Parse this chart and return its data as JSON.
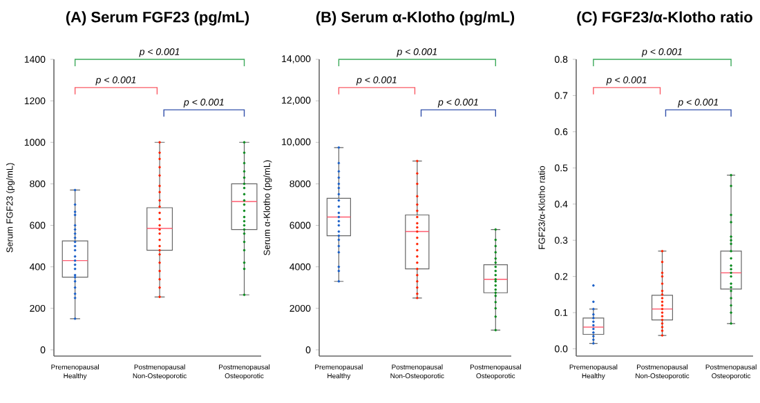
{
  "chart_data": [
    {
      "type": "box",
      "title": "(A) Serum FGF23 (pg/mL)",
      "ylabel": "Serum FGF23 (pg/mL)",
      "categories": [
        "Premenopausal Healthy",
        "Postmenopausal Non-Osteoporotic",
        "Postmenopausal Osteoporotic"
      ],
      "boxes": [
        {
          "low": 150,
          "q1": 350,
          "median": 430,
          "q3": 525,
          "high": 770
        },
        {
          "low": 255,
          "q1": 480,
          "median": 585,
          "q3": 685,
          "high": 1000
        },
        {
          "low": 265,
          "q1": 580,
          "median": 715,
          "q3": 800,
          "high": 1000
        }
      ],
      "series": [
        {
          "type": "scatter",
          "color": "#1a5fc8",
          "x": [
            "Premenopausal Healthy",
            "Premenopausal Healthy",
            "Premenopausal Healthy",
            "Premenopausal Healthy",
            "Premenopausal Healthy",
            "Premenopausal Healthy",
            "Premenopausal Healthy",
            "Premenopausal Healthy",
            "Premenopausal Healthy",
            "Premenopausal Healthy",
            "Premenopausal Healthy",
            "Premenopausal Healthy",
            "Premenopausal Healthy",
            "Premenopausal Healthy",
            "Premenopausal Healthy",
            "Premenopausal Healthy",
            "Premenopausal Healthy",
            "Premenopausal Healthy",
            "Premenopausal Healthy",
            "Premenopausal Healthy",
            "Premenopausal Healthy",
            "Premenopausal Healthy"
          ],
          "values": [
            150,
            250,
            270,
            300,
            330,
            350,
            360,
            390,
            410,
            430,
            450,
            480,
            500,
            520,
            540,
            560,
            580,
            600,
            650,
            665,
            700,
            770
          ]
        },
        {
          "type": "scatter",
          "color": "#ff2200",
          "x": [
            "Postmenopausal Non-Osteoporotic",
            "Postmenopausal Non-Osteoporotic",
            "Postmenopausal Non-Osteoporotic",
            "Postmenopausal Non-Osteoporotic",
            "Postmenopausal Non-Osteoporotic",
            "Postmenopausal Non-Osteoporotic",
            "Postmenopausal Non-Osteoporotic",
            "Postmenopausal Non-Osteoporotic",
            "Postmenopausal Non-Osteoporotic",
            "Postmenopausal Non-Osteoporotic",
            "Postmenopausal Non-Osteoporotic",
            "Postmenopausal Non-Osteoporotic",
            "Postmenopausal Non-Osteoporotic",
            "Postmenopausal Non-Osteoporotic",
            "Postmenopausal Non-Osteoporotic",
            "Postmenopausal Non-Osteoporotic",
            "Postmenopausal Non-Osteoporotic",
            "Postmenopausal Non-Osteoporotic",
            "Postmenopausal Non-Osteoporotic",
            "Postmenopausal Non-Osteoporotic",
            "Postmenopausal Non-Osteoporotic",
            "Postmenopausal Non-Osteoporotic",
            "Postmenopausal Non-Osteoporotic"
          ],
          "values": [
            255,
            300,
            340,
            380,
            420,
            460,
            480,
            500,
            530,
            560,
            580,
            600,
            630,
            660,
            690,
            720,
            760,
            790,
            840,
            880,
            920,
            950,
            1000
          ]
        },
        {
          "type": "scatter",
          "color": "#0a8a1e",
          "x": [
            "Postmenopausal Osteoporotic",
            "Postmenopausal Osteoporotic",
            "Postmenopausal Osteoporotic",
            "Postmenopausal Osteoporotic",
            "Postmenopausal Osteoporotic",
            "Postmenopausal Osteoporotic",
            "Postmenopausal Osteoporotic",
            "Postmenopausal Osteoporotic",
            "Postmenopausal Osteoporotic",
            "Postmenopausal Osteoporotic",
            "Postmenopausal Osteoporotic",
            "Postmenopausal Osteoporotic",
            "Postmenopausal Osteoporotic",
            "Postmenopausal Osteoporotic",
            "Postmenopausal Osteoporotic",
            "Postmenopausal Osteoporotic",
            "Postmenopausal Osteoporotic",
            "Postmenopausal Osteoporotic",
            "Postmenopausal Osteoporotic",
            "Postmenopausal Osteoporotic",
            "Postmenopausal Osteoporotic"
          ],
          "values": [
            265,
            390,
            420,
            480,
            520,
            560,
            580,
            600,
            620,
            640,
            670,
            700,
            720,
            750,
            780,
            800,
            830,
            860,
            900,
            950,
            1000
          ]
        }
      ],
      "marker": "circle",
      "ylim": [
        -30,
        1400
      ],
      "yticks": [
        0,
        200,
        400,
        600,
        800,
        1000,
        1200,
        1400
      ],
      "annotations": [
        "p < 0.001",
        "p < 0.001",
        "p < 0.001"
      ]
    },
    {
      "type": "box",
      "title": "(B) Serum α-Klotho (pg/mL)",
      "ylabel": "Serum α-Klotho (pg/mL)",
      "categories": [
        "Premenopausal Healthy",
        "Postmenopausal Non-Osteoporotic",
        "Postmenopausal Osteoporotic"
      ],
      "boxes": [
        {
          "low": 3300,
          "q1": 5500,
          "median": 6400,
          "q3": 7300,
          "high": 9750
        },
        {
          "low": 2500,
          "q1": 3900,
          "median": 5700,
          "q3": 6500,
          "high": 9100
        },
        {
          "low": 950,
          "q1": 2750,
          "median": 3400,
          "q3": 4100,
          "high": 5800
        }
      ],
      "series": [
        {
          "type": "scatter",
          "color": "#1a5fc8",
          "x": [
            "Premenopausal Healthy",
            "Premenopausal Healthy",
            "Premenopausal Healthy",
            "Premenopausal Healthy",
            "Premenopausal Healthy",
            "Premenopausal Healthy",
            "Premenopausal Healthy",
            "Premenopausal Healthy",
            "Premenopausal Healthy",
            "Premenopausal Healthy",
            "Premenopausal Healthy",
            "Premenopausal Healthy",
            "Premenopausal Healthy",
            "Premenopausal Healthy",
            "Premenopausal Healthy",
            "Premenopausal Healthy",
            "Premenopausal Healthy",
            "Premenopausal Healthy",
            "Premenopausal Healthy",
            "Premenopausal Healthy",
            "Premenopausal Healthy"
          ],
          "values": [
            3300,
            3800,
            4000,
            4700,
            5000,
            5300,
            5500,
            5700,
            6000,
            6200,
            6400,
            6600,
            6900,
            7200,
            7500,
            7800,
            8000,
            8300,
            8600,
            9000,
            9750
          ]
        },
        {
          "type": "scatter",
          "color": "#ff2200",
          "x": [
            "Postmenopausal Non-Osteoporotic",
            "Postmenopausal Non-Osteoporotic",
            "Postmenopausal Non-Osteoporotic",
            "Postmenopausal Non-Osteoporotic",
            "Postmenopausal Non-Osteoporotic",
            "Postmenopausal Non-Osteoporotic",
            "Postmenopausal Non-Osteoporotic",
            "Postmenopausal Non-Osteoporotic",
            "Postmenopausal Non-Osteoporotic",
            "Postmenopausal Non-Osteoporotic",
            "Postmenopausal Non-Osteoporotic",
            "Postmenopausal Non-Osteoporotic",
            "Postmenopausal Non-Osteoporotic",
            "Postmenopausal Non-Osteoporotic",
            "Postmenopausal Non-Osteoporotic",
            "Postmenopausal Non-Osteoporotic",
            "Postmenopausal Non-Osteoporotic",
            "Postmenopausal Non-Osteoporotic",
            "Postmenopausal Non-Osteoporotic",
            "Postmenopausal Non-Osteoporotic",
            "Postmenopausal Non-Osteoporotic"
          ],
          "values": [
            2500,
            2700,
            3000,
            3300,
            3600,
            3900,
            4200,
            4500,
            4800,
            5100,
            5400,
            5700,
            5900,
            6100,
            6400,
            6700,
            7000,
            7400,
            8000,
            8500,
            9100
          ]
        },
        {
          "type": "scatter",
          "color": "#0a8a1e",
          "x": [
            "Postmenopausal Osteoporotic",
            "Postmenopausal Osteoporotic",
            "Postmenopausal Osteoporotic",
            "Postmenopausal Osteoporotic",
            "Postmenopausal Osteoporotic",
            "Postmenopausal Osteoporotic",
            "Postmenopausal Osteoporotic",
            "Postmenopausal Osteoporotic",
            "Postmenopausal Osteoporotic",
            "Postmenopausal Osteoporotic",
            "Postmenopausal Osteoporotic",
            "Postmenopausal Osteoporotic",
            "Postmenopausal Osteoporotic",
            "Postmenopausal Osteoporotic",
            "Postmenopausal Osteoporotic",
            "Postmenopausal Osteoporotic",
            "Postmenopausal Osteoporotic",
            "Postmenopausal Osteoporotic",
            "Postmenopausal Osteoporotic"
          ],
          "values": [
            950,
            1600,
            2000,
            2300,
            2600,
            2750,
            2900,
            3100,
            3300,
            3400,
            3600,
            3800,
            4000,
            4200,
            4400,
            4700,
            5000,
            5300,
            5800
          ]
        }
      ],
      "marker": "circle",
      "ylim": [
        -300,
        14000
      ],
      "yticks": [
        0,
        2000,
        4000,
        6000,
        8000,
        {
          "value": 10000,
          "label": "10,000"
        },
        {
          "value": 12000,
          "label": "12,000"
        },
        {
          "value": 14000,
          "label": "14,000"
        }
      ],
      "annotations": [
        "p < 0.001",
        "p < 0.001",
        "p < 0.001"
      ]
    },
    {
      "type": "box",
      "title": "(C) FGF23/α-Klotho ratio",
      "ylabel": "FGF23/α-Klotho ratio",
      "categories": [
        "Premenopausal Healthy",
        "Postmenopausal Non-Osteoporotic",
        "Postmenopausal Osteoporotic"
      ],
      "boxes": [
        {
          "low": 0.015,
          "q1": 0.04,
          "median": 0.06,
          "q3": 0.085,
          "high": 0.11
        },
        {
          "low": 0.037,
          "q1": 0.08,
          "median": 0.11,
          "q3": 0.148,
          "high": 0.27
        },
        {
          "low": 0.07,
          "q1": 0.165,
          "median": 0.21,
          "q3": 0.27,
          "high": 0.48
        }
      ],
      "series": [
        {
          "type": "scatter",
          "color": "#1a5fc8",
          "x": [
            "Premenopausal Healthy",
            "Premenopausal Healthy",
            "Premenopausal Healthy",
            "Premenopausal Healthy",
            "Premenopausal Healthy",
            "Premenopausal Healthy",
            "Premenopausal Healthy",
            "Premenopausal Healthy",
            "Premenopausal Healthy",
            "Premenopausal Healthy",
            "Premenopausal Healthy",
            "Premenopausal Healthy"
          ],
          "values": [
            0.015,
            0.025,
            0.035,
            0.045,
            0.055,
            0.065,
            0.075,
            0.085,
            0.095,
            0.11,
            0.13,
            0.175
          ]
        },
        {
          "type": "scatter",
          "color": "#ff2200",
          "x": [
            "Postmenopausal Non-Osteoporotic",
            "Postmenopausal Non-Osteoporotic",
            "Postmenopausal Non-Osteoporotic",
            "Postmenopausal Non-Osteoporotic",
            "Postmenopausal Non-Osteoporotic",
            "Postmenopausal Non-Osteoporotic",
            "Postmenopausal Non-Osteoporotic",
            "Postmenopausal Non-Osteoporotic",
            "Postmenopausal Non-Osteoporotic",
            "Postmenopausal Non-Osteoporotic",
            "Postmenopausal Non-Osteoporotic",
            "Postmenopausal Non-Osteoporotic",
            "Postmenopausal Non-Osteoporotic",
            "Postmenopausal Non-Osteoporotic",
            "Postmenopausal Non-Osteoporotic",
            "Postmenopausal Non-Osteoporotic",
            "Postmenopausal Non-Osteoporotic",
            "Postmenopausal Non-Osteoporotic"
          ],
          "values": [
            0.037,
            0.05,
            0.06,
            0.07,
            0.08,
            0.09,
            0.1,
            0.11,
            0.12,
            0.13,
            0.14,
            0.15,
            0.16,
            0.18,
            0.2,
            0.21,
            0.24,
            0.27
          ]
        },
        {
          "type": "scatter",
          "color": "#0a8a1e",
          "x": [
            "Postmenopausal Osteoporotic",
            "Postmenopausal Osteoporotic",
            "Postmenopausal Osteoporotic",
            "Postmenopausal Osteoporotic",
            "Postmenopausal Osteoporotic",
            "Postmenopausal Osteoporotic",
            "Postmenopausal Osteoporotic",
            "Postmenopausal Osteoporotic",
            "Postmenopausal Osteoporotic",
            "Postmenopausal Osteoporotic",
            "Postmenopausal Osteoporotic",
            "Postmenopausal Osteoporotic",
            "Postmenopausal Osteoporotic",
            "Postmenopausal Osteoporotic",
            "Postmenopausal Osteoporotic",
            "Postmenopausal Osteoporotic",
            "Postmenopausal Osteoporotic",
            "Postmenopausal Osteoporotic",
            "Postmenopausal Osteoporotic",
            "Postmenopausal Osteoporotic"
          ],
          "values": [
            0.07,
            0.1,
            0.12,
            0.14,
            0.16,
            0.17,
            0.18,
            0.2,
            0.21,
            0.22,
            0.23,
            0.25,
            0.27,
            0.29,
            0.3,
            0.31,
            0.35,
            0.37,
            0.45,
            0.48
          ]
        }
      ],
      "marker": "circle",
      "ylim": [
        -0.02,
        0.8
      ],
      "yticks": [
        {
          "value": 0,
          "label": "0.0"
        },
        0.1,
        0.2,
        0.3,
        0.4,
        0.5,
        0.6,
        0.7,
        0.8
      ],
      "annotations": [
        "p < 0.001",
        "p < 0.001",
        "p < 0.001"
      ]
    }
  ]
}
